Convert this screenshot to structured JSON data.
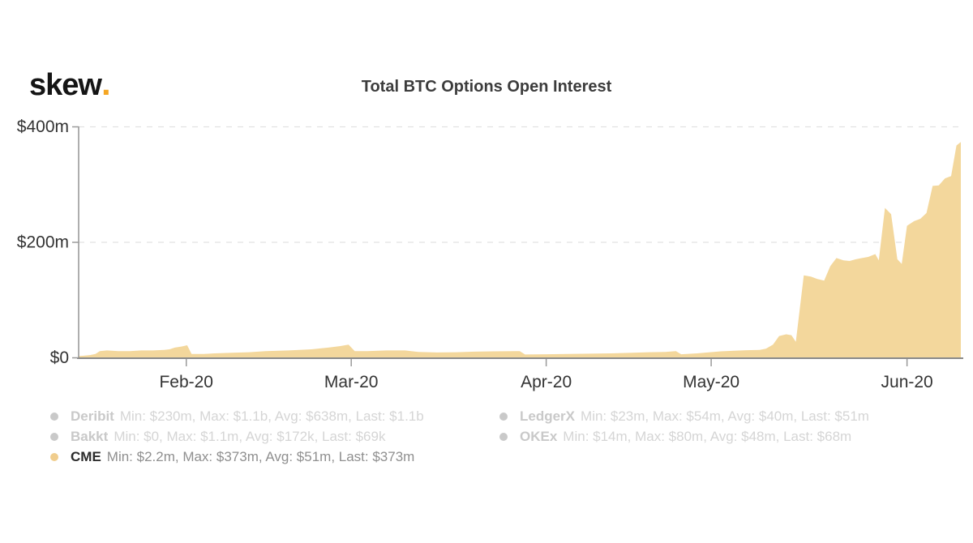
{
  "brand": {
    "logo_text": "skew",
    "logo_dot": "."
  },
  "chart_data": {
    "type": "area",
    "title": "Total BTC Options Open Interest",
    "series_name": "CME",
    "unit": "USD millions",
    "ylim": [
      0,
      400
    ],
    "grid": "horizontal dashed",
    "legend_position": "bottom",
    "y_ticks": [
      {
        "label": "$400m",
        "value": 400
      },
      {
        "label": "$200m",
        "value": 200
      },
      {
        "label": "$0",
        "value": 0
      }
    ],
    "x_ticks": [
      {
        "label": "Feb-20",
        "x": 0.122
      },
      {
        "label": "Mar-20",
        "x": 0.309
      },
      {
        "label": "Apr-20",
        "x": 0.53
      },
      {
        "label": "May-20",
        "x": 0.717
      },
      {
        "label": "Jun-20",
        "x": 0.939
      }
    ],
    "points": [
      [
        0.0,
        2.2
      ],
      [
        0.006,
        3
      ],
      [
        0.013,
        4
      ],
      [
        0.019,
        6
      ],
      [
        0.024,
        11
      ],
      [
        0.032,
        12
      ],
      [
        0.045,
        11
      ],
      [
        0.058,
        11
      ],
      [
        0.071,
        12
      ],
      [
        0.084,
        12
      ],
      [
        0.097,
        13
      ],
      [
        0.103,
        14
      ],
      [
        0.109,
        17
      ],
      [
        0.117,
        19
      ],
      [
        0.123,
        21
      ],
      [
        0.128,
        6
      ],
      [
        0.142,
        6
      ],
      [
        0.154,
        7
      ],
      [
        0.174,
        8
      ],
      [
        0.193,
        9
      ],
      [
        0.212,
        11
      ],
      [
        0.238,
        12
      ],
      [
        0.264,
        14
      ],
      [
        0.283,
        17
      ],
      [
        0.296,
        19.5
      ],
      [
        0.306,
        22
      ],
      [
        0.313,
        11
      ],
      [
        0.327,
        11
      ],
      [
        0.349,
        12
      ],
      [
        0.37,
        12
      ],
      [
        0.385,
        9.5
      ],
      [
        0.406,
        8.5
      ],
      [
        0.428,
        9
      ],
      [
        0.449,
        10
      ],
      [
        0.471,
        10.5
      ],
      [
        0.5,
        11
      ],
      [
        0.506,
        5
      ],
      [
        0.53,
        5.5
      ],
      [
        0.554,
        6
      ],
      [
        0.579,
        6.5
      ],
      [
        0.603,
        7
      ],
      [
        0.628,
        8
      ],
      [
        0.646,
        9
      ],
      [
        0.665,
        9.5
      ],
      [
        0.677,
        11
      ],
      [
        0.683,
        5.5
      ],
      [
        0.701,
        7
      ],
      [
        0.713,
        8.5
      ],
      [
        0.728,
        10.5
      ],
      [
        0.743,
        11.5
      ],
      [
        0.757,
        12.5
      ],
      [
        0.772,
        13
      ],
      [
        0.779,
        15
      ],
      [
        0.787,
        22
      ],
      [
        0.794,
        37
      ],
      [
        0.802,
        40
      ],
      [
        0.808,
        38.5
      ],
      [
        0.813,
        27
      ],
      [
        0.822,
        142
      ],
      [
        0.83,
        140
      ],
      [
        0.837,
        136
      ],
      [
        0.845,
        133
      ],
      [
        0.852,
        158
      ],
      [
        0.859,
        172
      ],
      [
        0.867,
        168
      ],
      [
        0.874,
        167
      ],
      [
        0.881,
        170
      ],
      [
        0.888,
        172
      ],
      [
        0.895,
        174
      ],
      [
        0.903,
        179
      ],
      [
        0.907,
        168
      ],
      [
        0.914,
        259
      ],
      [
        0.921,
        248
      ],
      [
        0.928,
        170
      ],
      [
        0.933,
        162
      ],
      [
        0.939,
        228
      ],
      [
        0.947,
        236
      ],
      [
        0.954,
        240
      ],
      [
        0.961,
        250
      ],
      [
        0.968,
        297
      ],
      [
        0.975,
        298
      ],
      [
        0.982,
        310
      ],
      [
        0.989,
        314
      ],
      [
        0.995,
        367
      ],
      [
        1.0,
        373
      ]
    ]
  },
  "legend": {
    "rows_left": [
      {
        "name": "Deribit",
        "stats": "Min: $230m, Max: $1.1b, Avg: $638m, Last: $1.1b",
        "active": false
      },
      {
        "name": "Bakkt",
        "stats": "Min: $0, Max: $1.1m, Avg: $172k, Last: $69k",
        "active": false
      },
      {
        "name": "CME",
        "stats": "Min: $2.2m, Max: $373m, Avg: $51m, Last: $373m",
        "active": true
      }
    ],
    "rows_right": [
      {
        "name": "LedgerX",
        "stats": "Min: $23m, Max: $54m, Avg: $40m, Last: $51m",
        "active": false
      },
      {
        "name": "OKEx",
        "stats": "Min: $14m, Max: $80m, Avg: $48m, Last: $68m",
        "active": false
      }
    ]
  },
  "colors": {
    "accent": "#f5a623",
    "cme_fill": "#f3d79c",
    "cme_dot": "#f0cd8d",
    "inactive_dot": "#c9c9c9",
    "inactive_name": "#c9c9c9",
    "inactive_stats": "#d5d5d5",
    "active_name": "#2b2b2b",
    "active_stats": "#8f8f8f",
    "axis_line": "#8a8a8a",
    "grid_line": "#e2e2e2",
    "tick_label": "#333333",
    "title": "#3c3c3c",
    "logo_text": "#151515"
  }
}
